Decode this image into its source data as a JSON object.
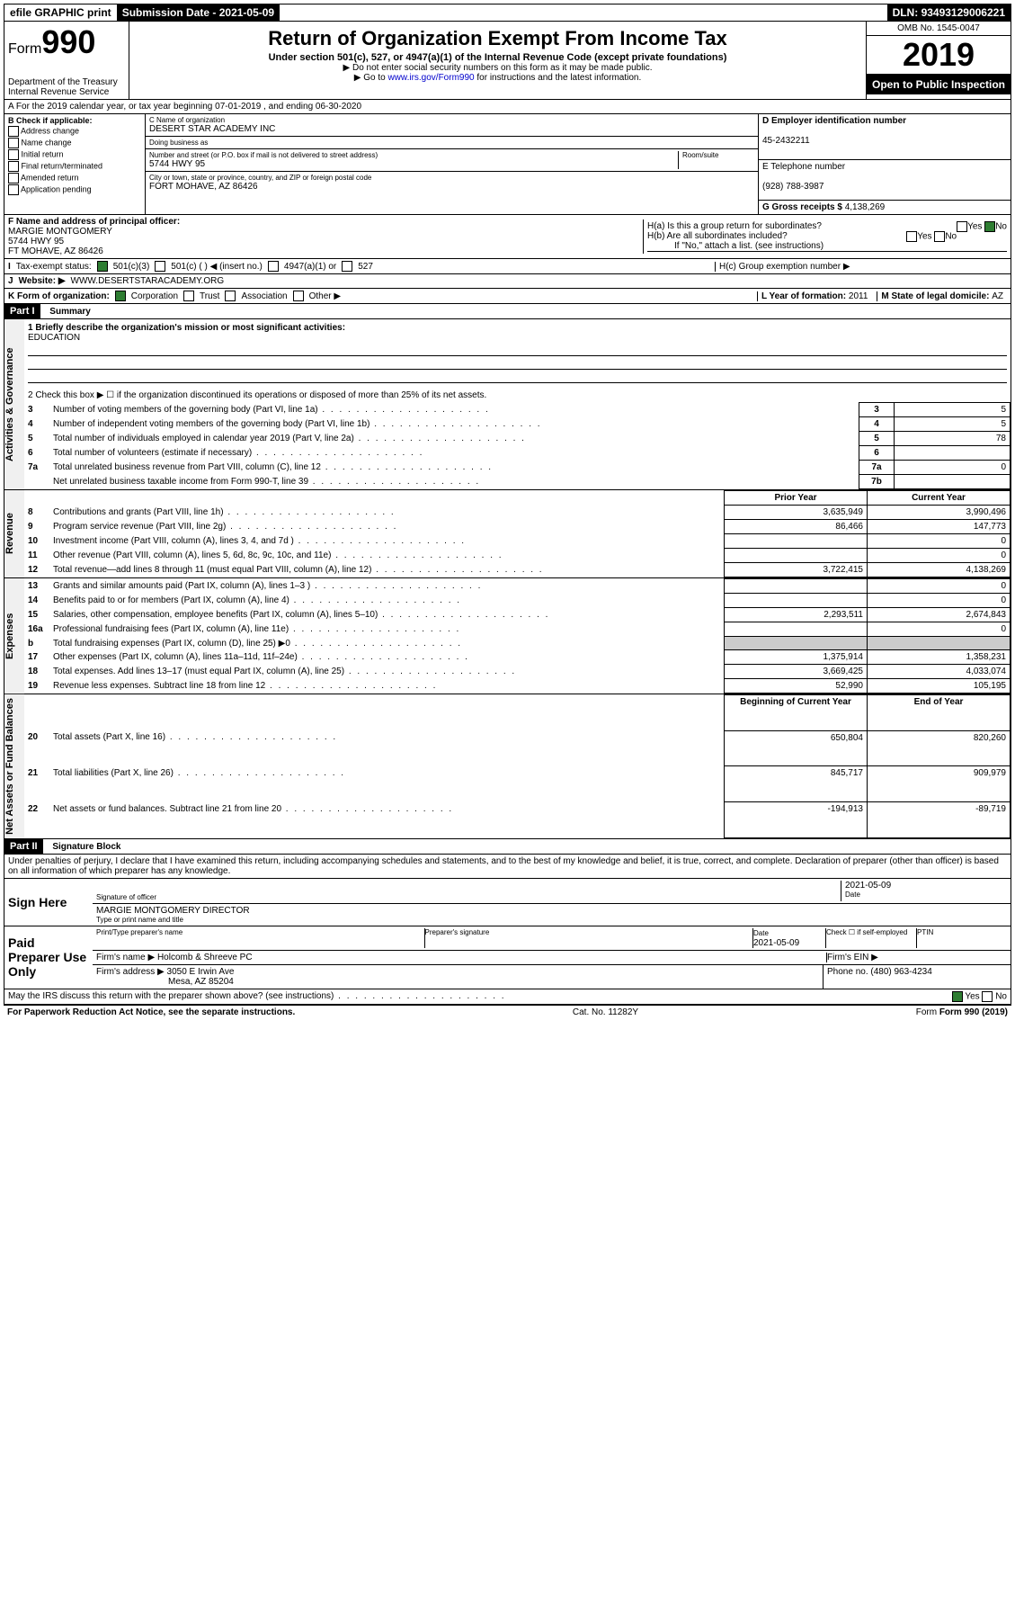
{
  "topbar": {
    "efile": "efile GRAPHIC print",
    "submission_label": "Submission Date - ",
    "submission_date": "2021-05-09",
    "dln_label": "DLN: ",
    "dln": "93493129006221"
  },
  "header": {
    "form_label": "Form",
    "form_num": "990",
    "dept": "Department of the Treasury\nInternal Revenue Service",
    "title": "Return of Organization Exempt From Income Tax",
    "subtitle": "Under section 501(c), 527, or 4947(a)(1) of the Internal Revenue Code (except private foundations)",
    "note1": "▶ Do not enter social security numbers on this form as it may be made public.",
    "note2_pre": "▶ Go to ",
    "note2_link": "www.irs.gov/Form990",
    "note2_post": " for instructions and the latest information.",
    "omb": "OMB No. 1545-0047",
    "year": "2019",
    "inspect": "Open to Public Inspection"
  },
  "rowA": "A For the 2019 calendar year, or tax year beginning 07-01-2019   , and ending 06-30-2020",
  "colB": {
    "label": "B Check if applicable:",
    "items": [
      "Address change",
      "Name change",
      "Initial return",
      "Final return/terminated",
      "Amended return",
      "Application pending"
    ]
  },
  "colC": {
    "name_label": "C Name of organization",
    "name": "DESERT STAR ACADEMY INC",
    "dba_label": "Doing business as",
    "dba": "",
    "addr_label": "Number and street (or P.O. box if mail is not delivered to street address)",
    "addr": "5744 HWY 95",
    "room_label": "Room/suite",
    "city_label": "City or town, state or province, country, and ZIP or foreign postal code",
    "city": "FORT MOHAVE, AZ  86426"
  },
  "colD": {
    "ein_label": "D Employer identification number",
    "ein": "45-2432211",
    "phone_label": "E Telephone number",
    "phone": "(928) 788-3987",
    "gross_label": "G Gross receipts $ ",
    "gross": "4,138,269"
  },
  "rowF": {
    "label": "F Name and address of principal officer:",
    "name": "MARGIE MONTGOMERY",
    "addr1": "5744 HWY 95",
    "addr2": "FT MOHAVE, AZ  86426"
  },
  "rowH": {
    "a": "H(a)  Is this a group return for subordinates?",
    "b": "H(b)  Are all subordinates included?",
    "b_note": "If \"No,\" attach a list. (see instructions)",
    "c": "H(c)  Group exemption number ▶"
  },
  "rowI": {
    "label": "Tax-exempt status:",
    "opts": [
      "501(c)(3)",
      "501(c) (  ) ◀ (insert no.)",
      "4947(a)(1) or",
      "527"
    ]
  },
  "rowJ": {
    "label": "Website: ▶",
    "value": "WWW.DESERTSTARACADEMY.ORG"
  },
  "rowK": {
    "label": "K Form of organization:",
    "opts": [
      "Corporation",
      "Trust",
      "Association",
      "Other ▶"
    ],
    "L_label": "L Year of formation: ",
    "L": "2011",
    "M_label": "M State of legal domicile: ",
    "M": "AZ"
  },
  "part1": {
    "header": "Part I",
    "title": "Summary",
    "q1": "1  Briefly describe the organization's mission or most significant activities:",
    "q1_ans": "EDUCATION",
    "q2": "2   Check this box ▶ ☐  if the organization discontinued its operations or disposed of more than 25% of its net assets.",
    "sections": {
      "gov": "Activities & Governance",
      "rev": "Revenue",
      "exp": "Expenses",
      "net": "Net Assets or Fund Balances"
    },
    "rows": [
      {
        "n": "3",
        "t": "Number of voting members of the governing body (Part VI, line 1a)",
        "box": "3",
        "v": "5"
      },
      {
        "n": "4",
        "t": "Number of independent voting members of the governing body (Part VI, line 1b)",
        "box": "4",
        "v": "5"
      },
      {
        "n": "5",
        "t": "Total number of individuals employed in calendar year 2019 (Part V, line 2a)",
        "box": "5",
        "v": "78"
      },
      {
        "n": "6",
        "t": "Total number of volunteers (estimate if necessary)",
        "box": "6",
        "v": ""
      },
      {
        "n": "7a",
        "t": "Total unrelated business revenue from Part VIII, column (C), line 12",
        "box": "7a",
        "v": "0"
      },
      {
        "n": "",
        "t": "Net unrelated business taxable income from Form 990-T, line 39",
        "box": "7b",
        "v": ""
      }
    ],
    "col_prior": "Prior Year",
    "col_current": "Current Year",
    "rev_rows": [
      {
        "n": "8",
        "t": "Contributions and grants (Part VIII, line 1h)",
        "p": "3,635,949",
        "c": "3,990,496"
      },
      {
        "n": "9",
        "t": "Program service revenue (Part VIII, line 2g)",
        "p": "86,466",
        "c": "147,773"
      },
      {
        "n": "10",
        "t": "Investment income (Part VIII, column (A), lines 3, 4, and 7d )",
        "p": "",
        "c": "0"
      },
      {
        "n": "11",
        "t": "Other revenue (Part VIII, column (A), lines 5, 6d, 8c, 9c, 10c, and 11e)",
        "p": "",
        "c": "0"
      },
      {
        "n": "12",
        "t": "Total revenue—add lines 8 through 11 (must equal Part VIII, column (A), line 12)",
        "p": "3,722,415",
        "c": "4,138,269"
      }
    ],
    "exp_rows": [
      {
        "n": "13",
        "t": "Grants and similar amounts paid (Part IX, column (A), lines 1–3 )",
        "p": "",
        "c": "0"
      },
      {
        "n": "14",
        "t": "Benefits paid to or for members (Part IX, column (A), line 4)",
        "p": "",
        "c": "0"
      },
      {
        "n": "15",
        "t": "Salaries, other compensation, employee benefits (Part IX, column (A), lines 5–10)",
        "p": "2,293,511",
        "c": "2,674,843"
      },
      {
        "n": "16a",
        "t": "Professional fundraising fees (Part IX, column (A), line 11e)",
        "p": "",
        "c": "0"
      },
      {
        "n": "b",
        "t": "Total fundraising expenses (Part IX, column (D), line 25) ▶0",
        "p": "—",
        "c": "—"
      },
      {
        "n": "17",
        "t": "Other expenses (Part IX, column (A), lines 11a–11d, 11f–24e)",
        "p": "1,375,914",
        "c": "1,358,231"
      },
      {
        "n": "18",
        "t": "Total expenses. Add lines 13–17 (must equal Part IX, column (A), line 25)",
        "p": "3,669,425",
        "c": "4,033,074"
      },
      {
        "n": "19",
        "t": "Revenue less expenses. Subtract line 18 from line 12",
        "p": "52,990",
        "c": "105,195"
      }
    ],
    "col_begin": "Beginning of Current Year",
    "col_end": "End of Year",
    "net_rows": [
      {
        "n": "20",
        "t": "Total assets (Part X, line 16)",
        "p": "650,804",
        "c": "820,260"
      },
      {
        "n": "21",
        "t": "Total liabilities (Part X, line 26)",
        "p": "845,717",
        "c": "909,979"
      },
      {
        "n": "22",
        "t": "Net assets or fund balances. Subtract line 21 from line 20",
        "p": "-194,913",
        "c": "-89,719"
      }
    ]
  },
  "part2": {
    "header": "Part II",
    "title": "Signature Block",
    "decl": "Under penalties of perjury, I declare that I have examined this return, including accompanying schedules and statements, and to the best of my knowledge and belief, it is true, correct, and complete. Declaration of preparer (other than officer) is based on all information of which preparer has any knowledge.",
    "sign_here": "Sign Here",
    "sig_officer": "Signature of officer",
    "sig_date": "2021-05-09",
    "date_label": "Date",
    "officer_name": "MARGIE MONTGOMERY DIRECTOR",
    "officer_label": "Type or print name and title",
    "paid_label": "Paid Preparer Use Only",
    "prep_name_label": "Print/Type preparer's name",
    "prep_sig_label": "Preparer's signature",
    "prep_date_label": "Date",
    "prep_date": "2021-05-09",
    "check_label": "Check ☐ if self-employed",
    "ptin_label": "PTIN",
    "firm_name_label": "Firm's name    ▶",
    "firm_name": "Holcomb & Shreeve PC",
    "firm_ein_label": "Firm's EIN ▶",
    "firm_addr_label": "Firm's address ▶",
    "firm_addr1": "3050 E Irwin Ave",
    "firm_addr2": "Mesa, AZ  85204",
    "firm_phone_label": "Phone no. ",
    "firm_phone": "(480) 963-4234",
    "discuss": "May the IRS discuss this return with the preparer shown above? (see instructions)",
    "yes": "Yes",
    "no": "No"
  },
  "footer": {
    "pra": "For Paperwork Reduction Act Notice, see the separate instructions.",
    "cat": "Cat. No. 11282Y",
    "form": "Form 990 (2019)"
  }
}
